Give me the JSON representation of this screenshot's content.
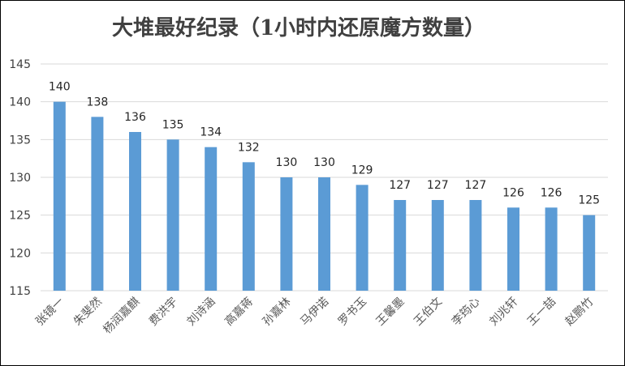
{
  "chart_data": {
    "type": "bar",
    "title": "大堆最好纪录（1小时内还原魔方数量）",
    "categories": [
      "张镜一",
      "朱斐然",
      "杨润嘉麒",
      "费洪宇",
      "刘诗涵",
      "高嘉蒋",
      "孙嘉林",
      "马伊诺",
      "罗书玉",
      "王馨墨",
      "王伯文",
      "李筠心",
      "刘兆轩",
      "王一喆",
      "赵鹏竹"
    ],
    "values": [
      140,
      138,
      136,
      135,
      134,
      132,
      130,
      130,
      129,
      127,
      127,
      127,
      126,
      126,
      125
    ],
    "ylim": [
      115,
      145
    ],
    "yticks": [
      115,
      120,
      125,
      130,
      135,
      140,
      145
    ],
    "xlabel": "",
    "ylabel": "",
    "grid": true,
    "bar_color": "#5B9BD5",
    "grid_color": "#D9D9D9"
  }
}
